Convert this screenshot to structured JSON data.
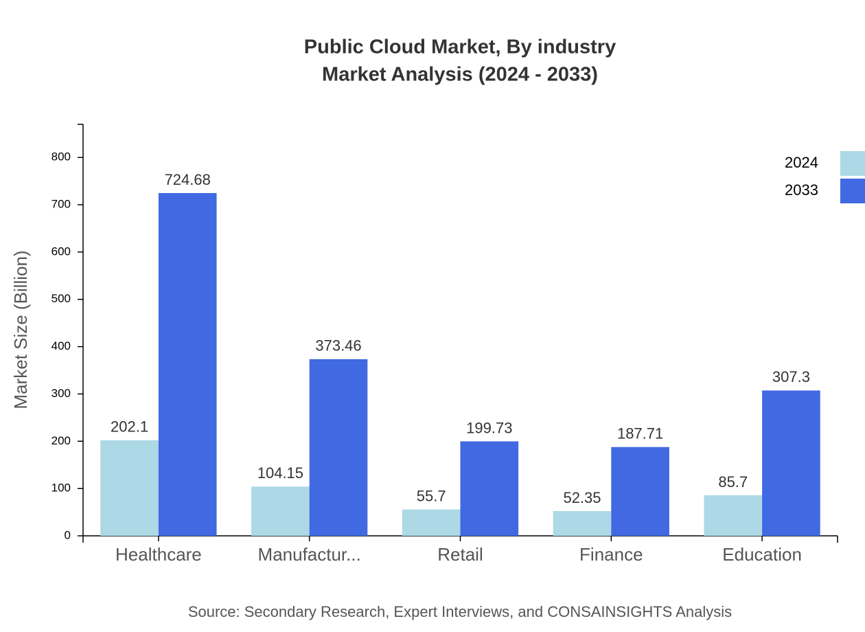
{
  "chart_data": {
    "type": "bar",
    "title": "Public Cloud Market, By industry",
    "subtitle": "Market Analysis (2024 - 2033)",
    "y_label": "Market Size (Billion)",
    "source": "Source: Secondary Research, Expert Interviews, and CONSAINSIGHTS Analysis",
    "categories": [
      "Healthcare",
      "Manufactur...",
      "Retail",
      "Finance",
      "Education"
    ],
    "series": [
      {
        "name": "2024",
        "color": "#add8e6",
        "values": [
          202.1,
          104.15,
          55.7,
          52.35,
          85.7
        ]
      },
      {
        "name": "2033",
        "color": "#4169e1",
        "values": [
          724.68,
          373.46,
          199.73,
          187.71,
          307.3
        ]
      }
    ],
    "ylim": [
      0,
      870
    ],
    "yticks": [
      0,
      100,
      200,
      300,
      400,
      500,
      600,
      700,
      800
    ],
    "legend": "top-right"
  }
}
